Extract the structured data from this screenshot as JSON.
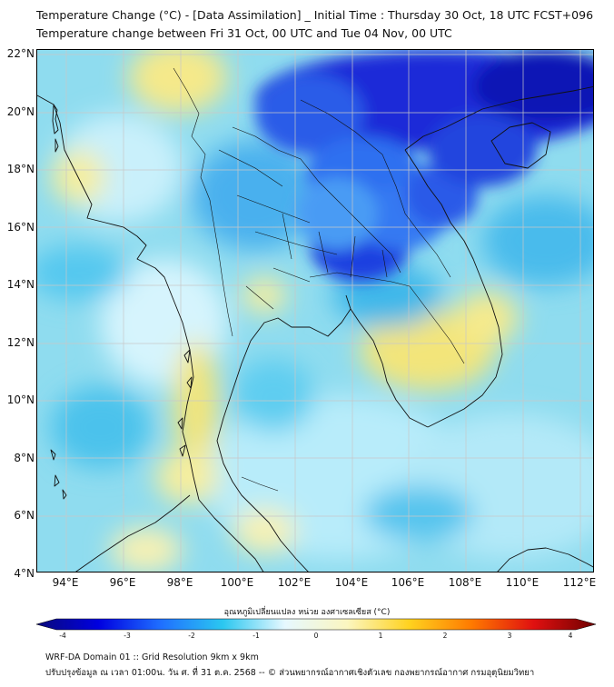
{
  "title_line1": "Temperature Change (°C) - [Data Assimilation] _ Initial Time : Thursday 30 Oct, 18 UTC FCST+096",
  "title_line2": "Temperature change between Fri 31 Oct, 00 UTC and Tue 04 Nov, 00 UTC",
  "lat_labels": [
    "22°N",
    "20°N",
    "18°N",
    "16°N",
    "14°N",
    "12°N",
    "10°N",
    "8°N",
    "6°N",
    "4°N"
  ],
  "lon_labels": [
    "94°E",
    "96°E",
    "98°E",
    "100°E",
    "102°E",
    "104°E",
    "106°E",
    "108°E",
    "110°E",
    "112°E"
  ],
  "colorbar": {
    "title": "อุณหภูมิเปลี่ยนแปลง หน่วย องศาเซลเซียส (°C)",
    "ticks": [
      "-4",
      "-3",
      "-2",
      "-1",
      "0",
      "1",
      "2",
      "3",
      "4"
    ],
    "range": [
      -4,
      4
    ],
    "colors": [
      "#0a0a7a",
      "#0000e0",
      "#1f6fff",
      "#2bc7f0",
      "#e6f8ff",
      "#fbf6c0",
      "#ffd21f",
      "#ff7a00",
      "#e01010",
      "#6e0000"
    ]
  },
  "footer_line1": "WRF-DA Domain 01 :: Grid Resolution 9km x 9km",
  "footer_line2": "ปรับปรุงข้อมูล ณ เวลา 01:00น. วัน ศ. ที่ 31 ต.ค. 2568 -- © ส่วนพยากรณ์อากาศเชิงตัวเลข กองพยากรณ์อากาศ กรมอุตุนิยมวิทยา"
}
